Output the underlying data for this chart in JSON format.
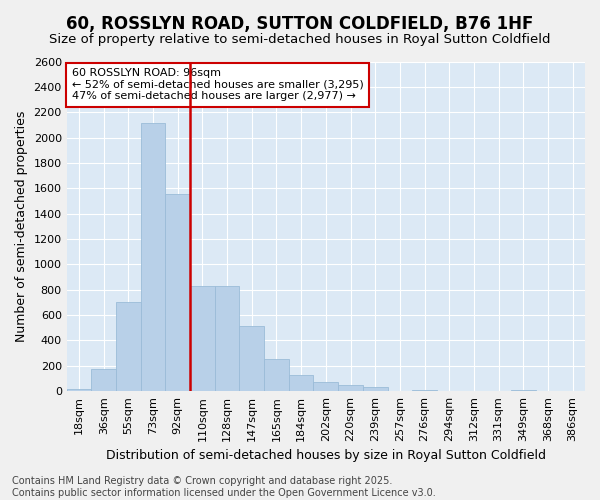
{
  "title": "60, ROSSLYN ROAD, SUTTON COLDFIELD, B76 1HF",
  "subtitle": "Size of property relative to semi-detached houses in Royal Sutton Coldfield",
  "xlabel": "Distribution of semi-detached houses by size in Royal Sutton Coldfield",
  "ylabel": "Number of semi-detached properties",
  "categories": [
    "18sqm",
    "36sqm",
    "55sqm",
    "73sqm",
    "92sqm",
    "110sqm",
    "128sqm",
    "147sqm",
    "165sqm",
    "184sqm",
    "202sqm",
    "220sqm",
    "239sqm",
    "257sqm",
    "276sqm",
    "294sqm",
    "312sqm",
    "331sqm",
    "349sqm",
    "368sqm",
    "386sqm"
  ],
  "values": [
    15,
    175,
    700,
    2115,
    1555,
    830,
    830,
    515,
    255,
    125,
    75,
    50,
    30,
    0,
    8,
    0,
    0,
    0,
    8,
    0,
    0
  ],
  "bar_color": "#b8d0e8",
  "bar_edge_color": "#9bbcd8",
  "vline_x_idx": 4,
  "vline_label": "60 ROSSLYN ROAD: 96sqm",
  "pct_smaller": 52,
  "count_smaller": 3295,
  "pct_larger": 47,
  "count_larger": 2977,
  "annotation_box_facecolor": "#ffffff",
  "annotation_border_color": "#cc0000",
  "vline_color": "#cc0000",
  "plot_bg_color": "#dce9f5",
  "fig_bg_color": "#f0f0f0",
  "ylim": [
    0,
    2600
  ],
  "yticks": [
    0,
    200,
    400,
    600,
    800,
    1000,
    1200,
    1400,
    1600,
    1800,
    2000,
    2200,
    2400,
    2600
  ],
  "title_fontsize": 12,
  "subtitle_fontsize": 9.5,
  "xlabel_fontsize": 9,
  "ylabel_fontsize": 9,
  "tick_fontsize": 8,
  "annot_fontsize": 8,
  "footer_text": "Contains HM Land Registry data © Crown copyright and database right 2025.\nContains public sector information licensed under the Open Government Licence v3.0.",
  "footer_fontsize": 7
}
